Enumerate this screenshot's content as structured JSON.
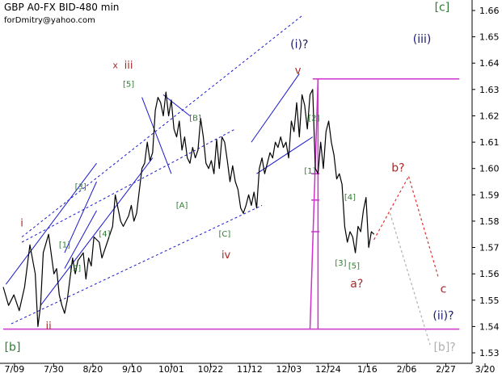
{
  "header": {
    "title": "GBP A0-FX BID-480 min",
    "subtitle": "forDmitry@yahoo.com"
  },
  "colors": {
    "price": "#000000",
    "channel": "#1a1acc",
    "magenta": "#cc33cc",
    "green": "#2e7d32",
    "red": "#a52a2a",
    "navy": "#1a1a6e",
    "gray": "#b0b0b0",
    "axis": "#000000"
  },
  "chart_data": {
    "type": "line",
    "title": "GBP A0-FX BID-480 min",
    "xlabel": "",
    "ylabel": "",
    "ylim": [
      1.53,
      1.665
    ],
    "grid": false,
    "y_ticks": [
      "1.53",
      "1.54",
      "1.55",
      "1.56",
      "1.57",
      "1.58",
      "1.59",
      "1.60",
      "1.61",
      "1.62",
      "1.63",
      "1.64",
      "1.65",
      "1.66"
    ],
    "x_ticks": [
      "7/09",
      "7/30",
      "8/20",
      "9/10",
      "10/01",
      "10/22",
      "11/12",
      "12/03",
      "12/24",
      "1/16",
      "2/06",
      "2/27",
      "3/20"
    ],
    "series": [
      {
        "values": [
          [
            0,
            1.555
          ],
          [
            2,
            1.548
          ],
          [
            4,
            1.552
          ],
          [
            6,
            1.546
          ],
          [
            8,
            1.555
          ],
          [
            10,
            1.571
          ],
          [
            12,
            1.56
          ],
          [
            13,
            1.54
          ],
          [
            14,
            1.548
          ],
          [
            15,
            1.568
          ],
          [
            17,
            1.575
          ],
          [
            19,
            1.56
          ],
          [
            20,
            1.562
          ],
          [
            21,
            1.552
          ],
          [
            22,
            1.548
          ],
          [
            23,
            1.545
          ],
          [
            24,
            1.55
          ],
          [
            26,
            1.566
          ],
          [
            27,
            1.56
          ],
          [
            28,
            1.565
          ],
          [
            30,
            1.568
          ],
          [
            31,
            1.558
          ],
          [
            32,
            1.566
          ],
          [
            33,
            1.563
          ],
          [
            34,
            1.574
          ],
          [
            36,
            1.572
          ],
          [
            37,
            1.566
          ],
          [
            39,
            1.572
          ],
          [
            41,
            1.578
          ],
          [
            42,
            1.59
          ],
          [
            43,
            1.585
          ],
          [
            44,
            1.58
          ],
          [
            45,
            1.578
          ],
          [
            47,
            1.582
          ],
          [
            48,
            1.586
          ],
          [
            49,
            1.58
          ],
          [
            50,
            1.583
          ],
          [
            52,
            1.6
          ],
          [
            53,
            1.602
          ],
          [
            54,
            1.61
          ],
          [
            55,
            1.603
          ],
          [
            56,
            1.606
          ],
          [
            57,
            1.622
          ],
          [
            58,
            1.627
          ],
          [
            59,
            1.625
          ],
          [
            60,
            1.62
          ],
          [
            61,
            1.629
          ],
          [
            62,
            1.62
          ],
          [
            63,
            1.626
          ],
          [
            64,
            1.615
          ],
          [
            65,
            1.612
          ],
          [
            66,
            1.618
          ],
          [
            67,
            1.607
          ],
          [
            68,
            1.612
          ],
          [
            69,
            1.604
          ],
          [
            70,
            1.602
          ],
          [
            71,
            1.608
          ],
          [
            72,
            1.604
          ],
          [
            73,
            1.607
          ],
          [
            74,
            1.619
          ],
          [
            75,
            1.612
          ],
          [
            76,
            1.602
          ],
          [
            77,
            1.6
          ],
          [
            78,
            1.603
          ],
          [
            79,
            1.598
          ],
          [
            80,
            1.611
          ],
          [
            81,
            1.6
          ],
          [
            82,
            1.612
          ],
          [
            83,
            1.61
          ],
          [
            84,
            1.603
          ],
          [
            85,
            1.595
          ],
          [
            86,
            1.601
          ],
          [
            87,
            1.595
          ],
          [
            88,
            1.592
          ],
          [
            89,
            1.585
          ],
          [
            90,
            1.583
          ],
          [
            91,
            1.586
          ],
          [
            92,
            1.59
          ],
          [
            93,
            1.586
          ],
          [
            94,
            1.591
          ],
          [
            95,
            1.585
          ],
          [
            96,
            1.6
          ],
          [
            97,
            1.604
          ],
          [
            98,
            1.598
          ],
          [
            99,
            1.602
          ],
          [
            100,
            1.606
          ],
          [
            101,
            1.604
          ],
          [
            102,
            1.61
          ],
          [
            103,
            1.608
          ],
          [
            104,
            1.612
          ],
          [
            105,
            1.608
          ],
          [
            106,
            1.61
          ],
          [
            107,
            1.604
          ],
          [
            108,
            1.618
          ],
          [
            109,
            1.614
          ],
          [
            110,
            1.625
          ],
          [
            111,
            1.612
          ],
          [
            112,
            1.628
          ],
          [
            113,
            1.624
          ],
          [
            114,
            1.615
          ],
          [
            115,
            1.628
          ],
          [
            116,
            1.63
          ],
          [
            117,
            1.6
          ],
          [
            118,
            1.598
          ],
          [
            119,
            1.61
          ],
          [
            120,
            1.6
          ],
          [
            121,
            1.614
          ],
          [
            122,
            1.618
          ],
          [
            123,
            1.61
          ],
          [
            124,
            1.605
          ],
          [
            125,
            1.596
          ],
          [
            126,
            1.598
          ],
          [
            127,
            1.594
          ],
          [
            128,
            1.578
          ],
          [
            129,
            1.572
          ],
          [
            130,
            1.576
          ],
          [
            131,
            1.574
          ],
          [
            132,
            1.568
          ],
          [
            133,
            1.578
          ],
          [
            134,
            1.576
          ],
          [
            135,
            1.584
          ],
          [
            136,
            1.589
          ],
          [
            137,
            1.57
          ],
          [
            138,
            1.576
          ],
          [
            139,
            1.575
          ]
        ]
      }
    ],
    "forecast": [
      {
        "from": [
          139,
          1.573
        ],
        "to": [
          146,
          1.586
        ]
      },
      {
        "from": [
          146,
          1.586
        ],
        "to": [
          152,
          1.597
        ]
      },
      {
        "from": [
          152,
          1.597
        ],
        "to": [
          163,
          1.559
        ]
      }
    ],
    "forecast_alt": [
      {
        "from": [
          145,
          1.583
        ],
        "to": [
          160,
          1.533
        ]
      }
    ],
    "channel_lines": [
      {
        "from": [
          1,
          1.556
        ],
        "to": [
          35,
          1.602
        ]
      },
      {
        "from": [
          14,
          1.548
        ],
        "to": [
          56,
          1.604
        ]
      },
      {
        "from": [
          7,
          1.574
        ],
        "to": [
          112,
          1.658
        ]
      },
      {
        "from": [
          3,
          1.541
        ],
        "to": [
          97,
          1.586
        ]
      },
      {
        "from": [
          7,
          1.572
        ],
        "to": [
          87,
          1.615
        ]
      },
      {
        "from": [
          23,
          1.562
        ],
        "to": [
          35,
          1.584
        ]
      },
      {
        "from": [
          23,
          1.568
        ],
        "to": [
          35,
          1.595
        ]
      },
      {
        "from": [
          52,
          1.627
        ],
        "to": [
          63,
          1.598
        ]
      },
      {
        "from": [
          60,
          1.628
        ],
        "to": [
          70,
          1.62
        ]
      },
      {
        "from": [
          93,
          1.61
        ],
        "to": [
          111,
          1.636
        ]
      },
      {
        "from": [
          95,
          1.598
        ],
        "to": [
          116,
          1.612
        ]
      }
    ],
    "magenta_lines": [
      {
        "from": [
          116,
          1.634
        ],
        "to": [
          171,
          1.634
        ]
      },
      {
        "from": [
          0,
          1.539
        ],
        "to": [
          171,
          1.539
        ]
      },
      {
        "from": [
          115,
          1.539
        ],
        "to": [
          118,
          1.634
        ]
      },
      {
        "from": [
          118,
          1.634
        ],
        "to": [
          118,
          1.539
        ]
      }
    ],
    "magenta_ticks": [
      1.598,
      1.588,
      1.576
    ],
    "annotations": [
      {
        "text": "[c]",
        "x": 164.5,
        "y": 1.661,
        "color": "green",
        "size": 14
      },
      {
        "text": "(iii)",
        "x": 157,
        "y": 1.649,
        "color": "navy",
        "size": 14
      },
      {
        "text": "(i)?",
        "x": 111,
        "y": 1.647,
        "color": "navy",
        "size": 14
      },
      {
        "text": "v",
        "x": 110.5,
        "y": 1.637,
        "color": "red",
        "size": 13
      },
      {
        "text": "x",
        "x": 42,
        "y": 1.639,
        "color": "red",
        "size": 11
      },
      {
        "text": "iii",
        "x": 47,
        "y": 1.639,
        "color": "red",
        "size": 13
      },
      {
        "text": "[5]",
        "x": 47,
        "y": 1.632,
        "color": "green",
        "size": 10
      },
      {
        "text": "[B]",
        "x": 72,
        "y": 1.619,
        "color": "green",
        "size": 10
      },
      {
        "text": "[2]",
        "x": 116.5,
        "y": 1.619,
        "color": "green",
        "size": 10
      },
      {
        "text": "[3]",
        "x": 29,
        "y": 1.593,
        "color": "green",
        "size": 10
      },
      {
        "text": "[1]",
        "x": 115,
        "y": 1.599,
        "color": "green",
        "size": 10
      },
      {
        "text": "[4]",
        "x": 130,
        "y": 1.589,
        "color": "green",
        "size": 10
      },
      {
        "text": "[4]",
        "x": 38,
        "y": 1.575,
        "color": "green",
        "size": 10
      },
      {
        "text": "[A]",
        "x": 67,
        "y": 1.586,
        "color": "green",
        "size": 10
      },
      {
        "text": "[C]",
        "x": 83,
        "y": 1.575,
        "color": "green",
        "size": 10
      },
      {
        "text": "[1]",
        "x": 23,
        "y": 1.571,
        "color": "green",
        "size": 10
      },
      {
        "text": "[2]",
        "x": 27,
        "y": 1.562,
        "color": "green",
        "size": 10
      },
      {
        "text": "[3]",
        "x": 126.5,
        "y": 1.564,
        "color": "green",
        "size": 10
      },
      {
        "text": "[5]",
        "x": 131.5,
        "y": 1.563,
        "color": "green",
        "size": 10
      },
      {
        "text": "i",
        "x": 7,
        "y": 1.579,
        "color": "red",
        "size": 13
      },
      {
        "text": "iv",
        "x": 83.5,
        "y": 1.567,
        "color": "red",
        "size": 13
      },
      {
        "text": "ii",
        "x": 17,
        "y": 1.54,
        "color": "red",
        "size": 13
      },
      {
        "text": "b?",
        "x": 148,
        "y": 1.6,
        "color": "red",
        "size": 14
      },
      {
        "text": "a?",
        "x": 132.5,
        "y": 1.556,
        "color": "red",
        "size": 14
      },
      {
        "text": "c",
        "x": 165,
        "y": 1.554,
        "color": "red",
        "size": 14
      },
      {
        "text": "(ii)?",
        "x": 165,
        "y": 1.544,
        "color": "navy",
        "size": 14
      },
      {
        "text": "[b]",
        "x": 3.5,
        "y": 1.532,
        "color": "green",
        "size": 14
      },
      {
        "text": "[b]?",
        "x": 165.5,
        "y": 1.532,
        "color": "gray",
        "size": 14
      }
    ]
  }
}
